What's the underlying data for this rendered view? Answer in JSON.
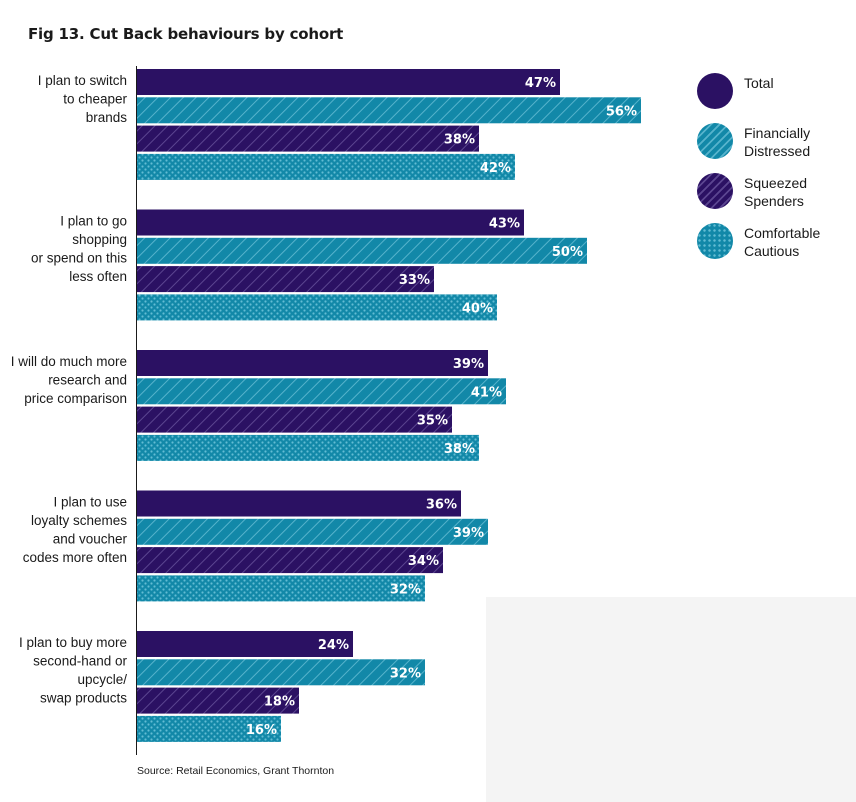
{
  "title": "Fig 13. Cut Back behaviours by cohort",
  "source": "Source: Retail Economics, Grant Thornton",
  "colors": {
    "purple": "#2b1163",
    "teal": "#1288a8"
  },
  "legend": [
    {
      "label": "Total",
      "pattern": "solid-purple"
    },
    {
      "label": "Financially\nDistressed",
      "pattern": "hatch-teal"
    },
    {
      "label": "Squeezed\nSpenders",
      "pattern": "hatch-purple"
    },
    {
      "label": "Comfortable\nCautious",
      "pattern": "dots-teal"
    }
  ],
  "chart_data": {
    "type": "bar",
    "orientation": "horizontal",
    "title": "Fig 13. Cut Back behaviours by cohort",
    "categories": [
      [
        "I plan to switch",
        "to cheaper",
        "brands"
      ],
      [
        "I plan to go",
        "shopping",
        "or spend on this",
        "less often"
      ],
      [
        "I will do much more",
        "research and",
        "price comparison"
      ],
      [
        "I plan to use",
        "loyalty schemes",
        "and voucher",
        "codes more often"
      ],
      [
        "I plan to buy more",
        "second-hand or",
        "upcycle/",
        "swap products"
      ]
    ],
    "series": [
      {
        "name": "Total",
        "values": [
          47,
          43,
          39,
          36,
          24
        ]
      },
      {
        "name": "Financially Distressed",
        "values": [
          56,
          50,
          41,
          39,
          32
        ]
      },
      {
        "name": "Squeezed Spenders",
        "values": [
          38,
          33,
          35,
          34,
          18
        ]
      },
      {
        "name": "Comfortable Cautious",
        "values": [
          42,
          40,
          38,
          32,
          16
        ]
      }
    ],
    "unit": "%",
    "xlim": [
      0,
      60
    ]
  }
}
